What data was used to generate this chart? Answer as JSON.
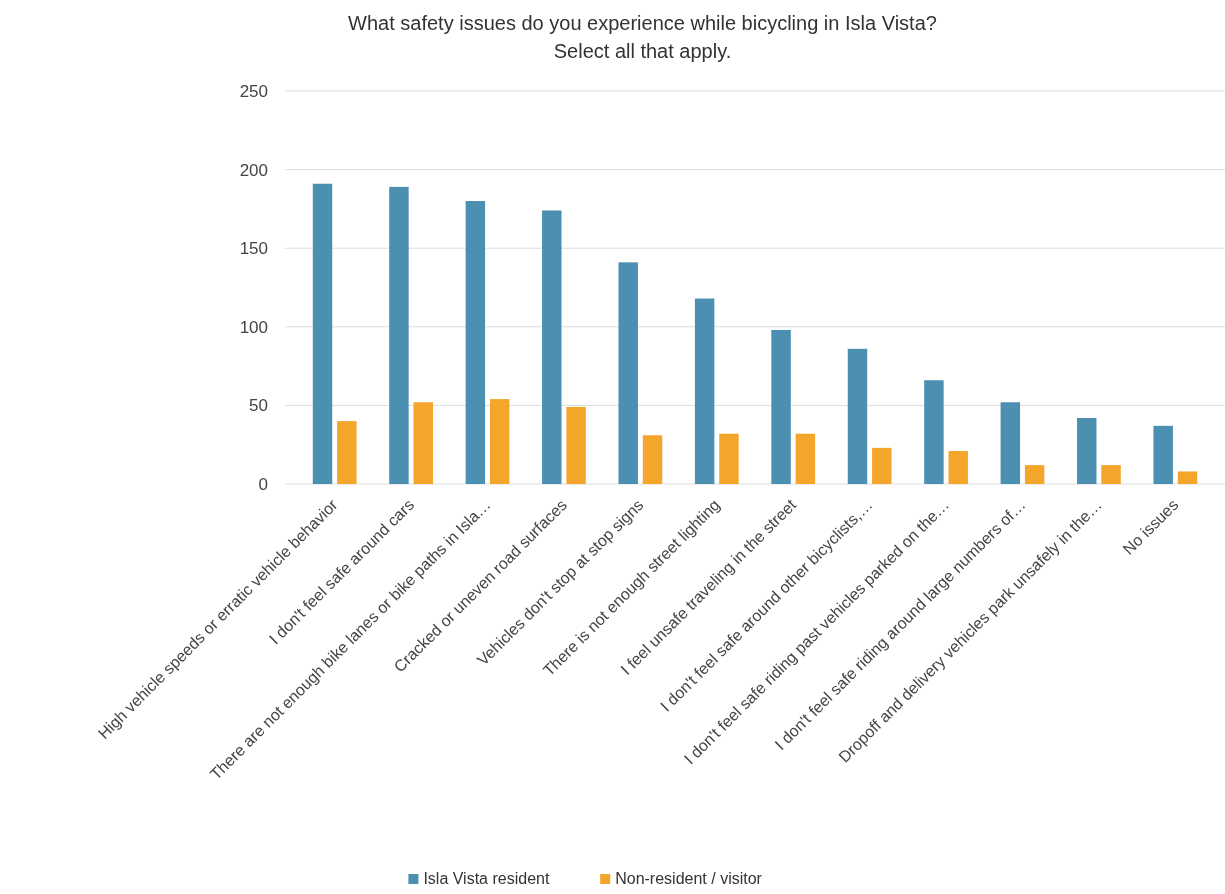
{
  "chart_data": {
    "type": "bar",
    "title": "What safety issues do you experience while bicycling in Isla Vista?",
    "subtitle": "Select all that apply.",
    "categories": [
      "High vehicle speeds or erratic vehicle behavior",
      "I don't feel safe around cars",
      "There are not enough bike lanes or bike paths in Isla…",
      "Cracked or uneven road surfaces",
      "Vehicles don't stop at stop signs",
      "There is not enough street lighting",
      "I feel unsafe traveling in the street",
      "I don't feel safe around other bicyclists,…",
      "I don't feel safe riding past vehicles parked on the…",
      "I don't feel safe riding around large numbers of…",
      "Dropoff and delivery vehicles park unsafely in the…",
      "No issues"
    ],
    "series": [
      {
        "name": "Isla Vista resident",
        "color": "#4b8fb1",
        "values": [
          191,
          189,
          180,
          174,
          141,
          118,
          98,
          86,
          66,
          52,
          42,
          37
        ]
      },
      {
        "name": "Non-resident / visitor",
        "color": "#f4a62a",
        "values": [
          40,
          52,
          54,
          49,
          31,
          32,
          32,
          23,
          21,
          12,
          12,
          8
        ]
      }
    ],
    "ylim": [
      0,
      250
    ],
    "yticks": [
      0,
      50,
      100,
      150,
      200,
      250
    ],
    "grid": "y",
    "legend": "bottom"
  }
}
